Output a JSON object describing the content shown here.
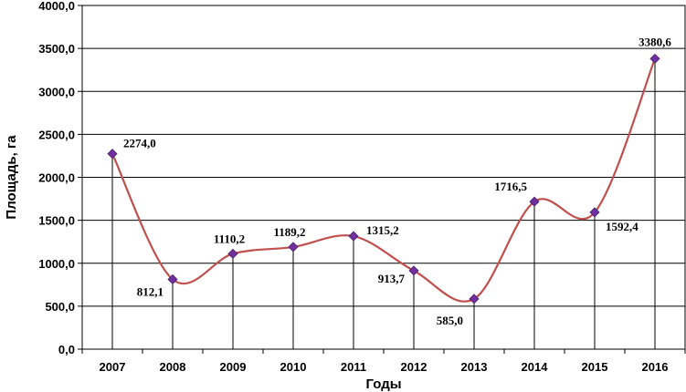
{
  "chart_data": {
    "type": "line",
    "title": "",
    "xlabel": "Годы",
    "ylabel": "Площадь, га",
    "categories": [
      "2007",
      "2008",
      "2009",
      "2010",
      "2011",
      "2012",
      "2013",
      "2014",
      "2015",
      "2016"
    ],
    "values": [
      2274.0,
      812.1,
      1110.2,
      1189.2,
      1315.2,
      913.7,
      585.0,
      1716.5,
      1592.4,
      3380.6
    ],
    "data_labels": [
      "2274,0",
      "812,1",
      "1110,2",
      "1189,2",
      "1315,2",
      "913,7",
      "585,0",
      "1716,5",
      "1592,4",
      "3380,6"
    ],
    "ylim": [
      0,
      4000
    ],
    "yticks": [
      0,
      500,
      1000,
      1500,
      2000,
      2500,
      3000,
      3500,
      4000
    ],
    "ytick_labels": [
      "0,0",
      "500,0",
      "1000,0",
      "1500,0",
      "2000,0",
      "2500,0",
      "3000,0",
      "3500,0",
      "4000,0"
    ],
    "grid": true,
    "smooth": true,
    "drop_lines": true,
    "colors": {
      "line": "#c0504d",
      "marker": "#7030a0",
      "grid": "#000000"
    }
  }
}
